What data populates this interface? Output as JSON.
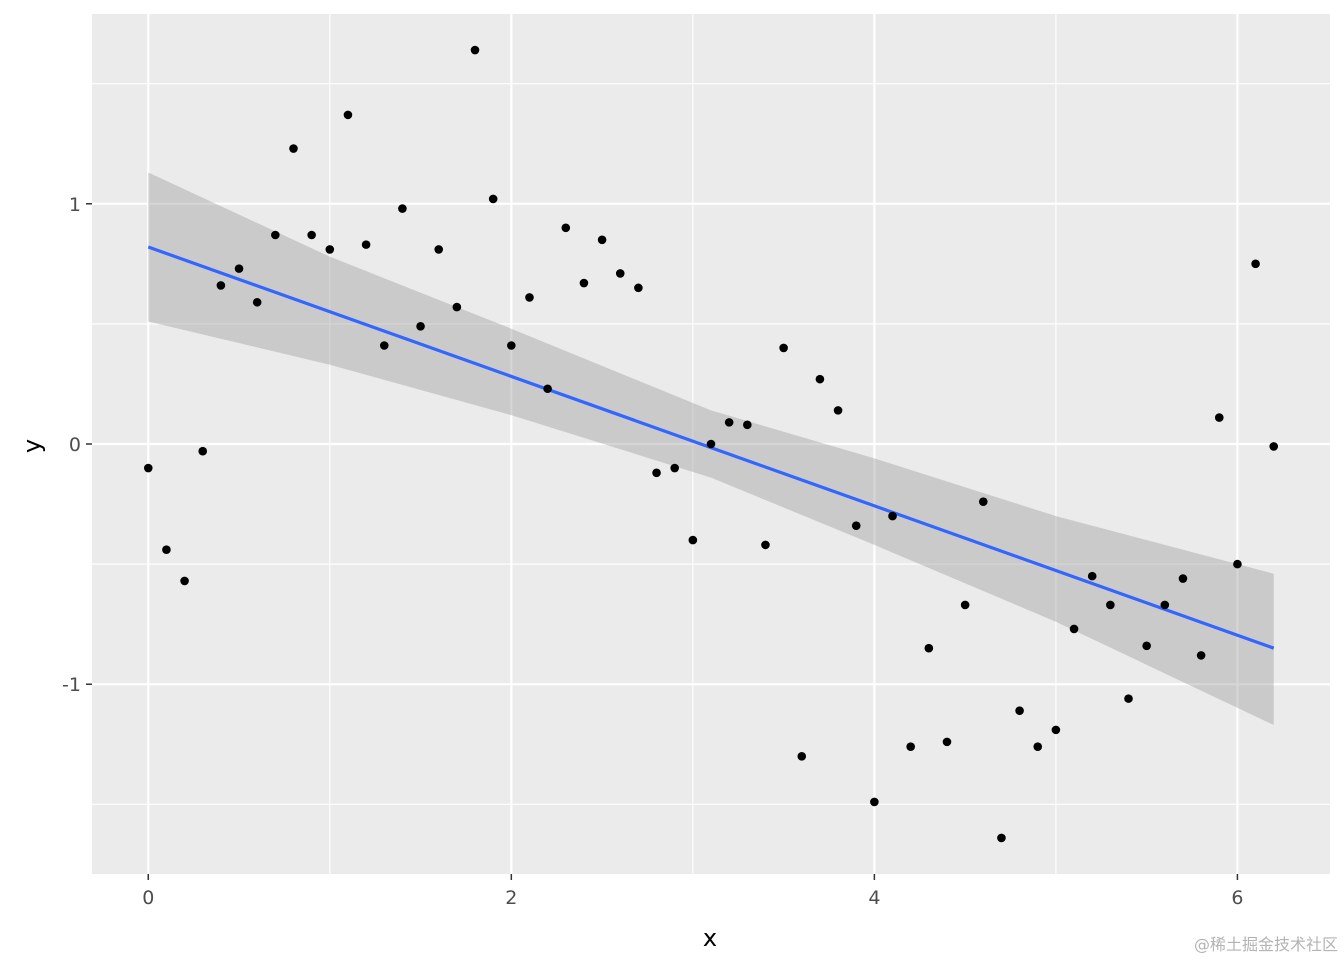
{
  "chart_data": {
    "type": "scatter",
    "xlabel": "x",
    "ylabel": "y",
    "xlim": [
      -0.31,
      6.51
    ],
    "ylim": [
      -1.79,
      1.79
    ],
    "x_ticks": [
      0,
      2,
      4,
      6
    ],
    "x_tick_labels": [
      "0",
      "2",
      "4",
      "6"
    ],
    "y_ticks": [
      -1,
      0,
      1
    ],
    "y_tick_labels": [
      "-1",
      "0",
      "1"
    ],
    "grid": true,
    "background": "#ebebeb",
    "points": {
      "color": "#000000",
      "x": [
        0.0,
        0.1,
        0.2,
        0.3,
        0.4,
        0.5,
        0.6,
        0.7,
        0.8,
        0.9,
        1.0,
        1.1,
        1.2,
        1.3,
        1.4,
        1.5,
        1.6,
        1.7,
        1.8,
        1.9,
        2.0,
        2.1,
        2.2,
        2.3,
        2.4,
        2.5,
        2.6,
        2.7,
        2.8,
        2.9,
        3.0,
        3.1,
        3.2,
        3.3,
        3.4,
        3.5,
        3.6,
        3.7,
        3.8,
        3.9,
        4.0,
        4.1,
        4.2,
        4.3,
        4.4,
        4.5,
        4.6,
        4.7,
        4.8,
        4.9,
        5.0,
        5.1,
        5.2,
        5.3,
        5.4,
        5.5,
        5.6,
        5.7,
        5.8,
        5.9,
        6.0,
        6.1,
        6.2
      ],
      "y": [
        -0.1,
        -0.44,
        -0.57,
        -0.03,
        0.66,
        0.73,
        0.59,
        0.87,
        1.23,
        0.87,
        0.81,
        1.37,
        0.83,
        0.41,
        0.98,
        0.49,
        0.81,
        0.57,
        1.64,
        1.02,
        0.41,
        0.61,
        0.23,
        0.9,
        0.67,
        0.85,
        0.71,
        0.65,
        -0.12,
        -0.1,
        -0.4,
        0.0,
        0.09,
        0.08,
        -0.42,
        0.4,
        -1.3,
        0.27,
        0.14,
        -0.34,
        -1.49,
        -0.3,
        -1.26,
        -0.85,
        -1.24,
        -0.67,
        -0.24,
        -1.64,
        -1.11,
        -1.26,
        -1.19,
        -0.77,
        -0.55,
        -0.67,
        -1.06,
        -0.84,
        -0.67,
        -0.56,
        -0.88,
        0.11,
        -0.5,
        0.75,
        -0.01
      ]
    },
    "fit_line": {
      "color": "#3366ff",
      "x": [
        0,
        6.2
      ],
      "y": [
        0.82,
        -0.85
      ]
    },
    "confidence_band": {
      "color": "#999999",
      "x": [
        0,
        1,
        2,
        3.1,
        4,
        5,
        6.2
      ],
      "upper": [
        1.13,
        0.78,
        0.48,
        0.14,
        -0.06,
        -0.3,
        -0.54
      ],
      "lower": [
        0.51,
        0.33,
        0.12,
        -0.14,
        -0.42,
        -0.74,
        -1.17
      ]
    }
  },
  "watermark": "@稀土掘金技术社区"
}
